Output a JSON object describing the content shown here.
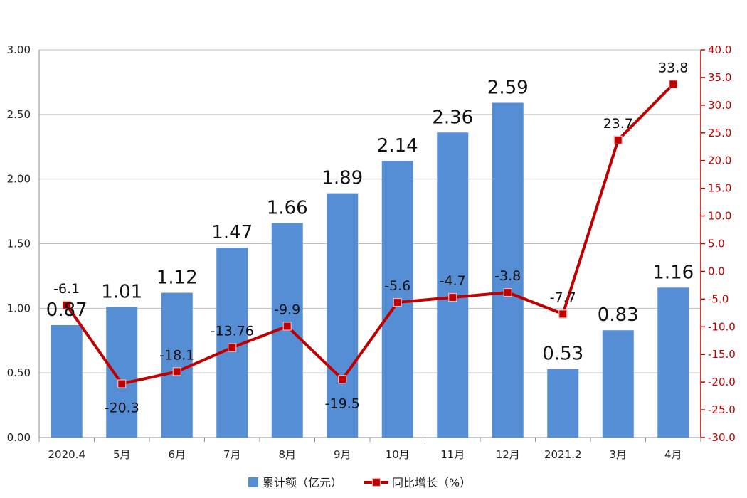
{
  "chart_data": {
    "type": "bar",
    "categories": [
      "2020.4",
      "5月",
      "6月",
      "7月",
      "8月",
      "9月",
      "10月",
      "11月",
      "12月",
      "2021.2",
      "3月",
      "4月"
    ],
    "series": [
      {
        "name": "累计额（亿元）",
        "type": "bar",
        "axis": "left",
        "color": "#558ed5",
        "values": [
          0.87,
          1.01,
          1.12,
          1.47,
          1.66,
          1.89,
          2.14,
          2.36,
          2.59,
          0.53,
          0.83,
          1.16
        ],
        "labels": [
          "0.87",
          "1.01",
          "1.12",
          "1.47",
          "1.66",
          "1.89",
          "2.14",
          "2.36",
          "2.59",
          "0.53",
          "0.83",
          "1.16"
        ]
      },
      {
        "name": "同比增长（%）",
        "type": "line",
        "axis": "right",
        "color": "#c00000",
        "values": [
          -6.1,
          -20.3,
          -18.1,
          -13.76,
          -9.9,
          -19.5,
          -5.6,
          -4.7,
          -3.8,
          -7.7,
          23.7,
          33.8
        ],
        "labels": [
          "-6.1",
          "-20.3",
          "-18.1",
          "-13.76",
          "-9.9",
          "-19.5",
          "-5.6",
          "-4.7",
          "-3.8",
          "-7.7",
          "23.7",
          "33.8"
        ]
      }
    ],
    "y_left": {
      "range": [
        0,
        3
      ],
      "ticks": [
        "0.00",
        "0.50",
        "1.00",
        "1.50",
        "2.00",
        "2.50",
        "3.00"
      ]
    },
    "y_right": {
      "range": [
        -30,
        40
      ],
      "ticks": [
        "-30.0",
        "-25.0",
        "-20.0",
        "-15.0",
        "-10.0",
        "-5.0",
        "0.0",
        "5.0",
        "10.0",
        "15.0",
        "20.0",
        "25.0",
        "30.0",
        "35.0",
        "40.0"
      ]
    },
    "grid": true,
    "legend_position": "bottom"
  }
}
